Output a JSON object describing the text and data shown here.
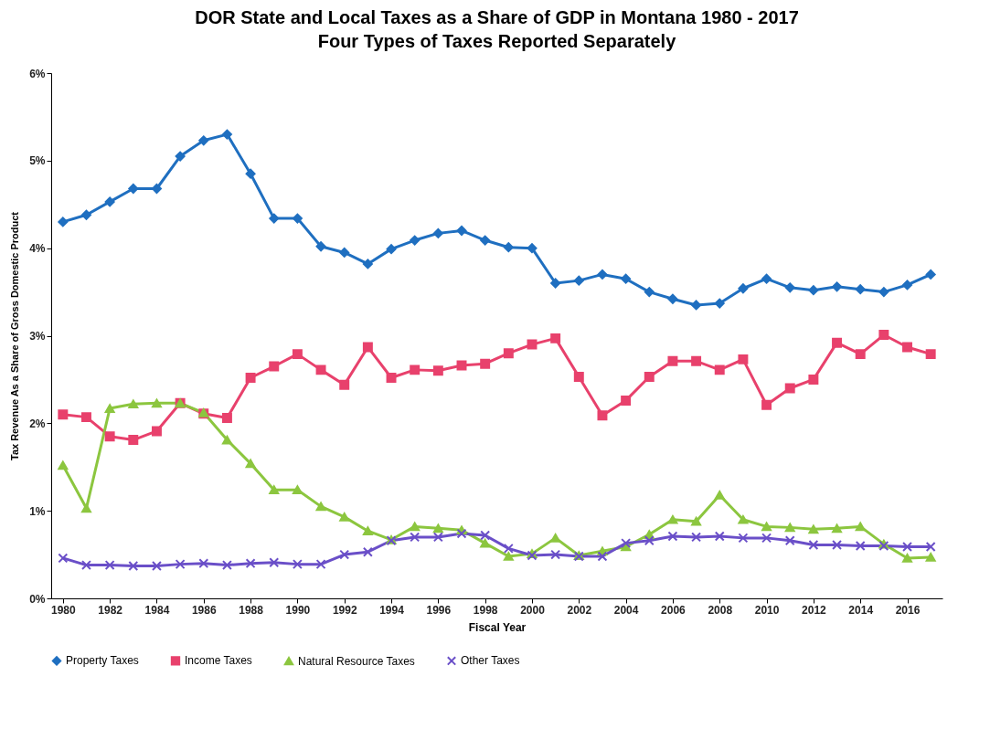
{
  "chart_data": {
    "type": "line",
    "title": "DOR State and Local Taxes as a Share of GDP in Montana 1980 - 2017",
    "subtitle": "Four Types of Taxes Reported Separately",
    "xlabel": "Fiscal Year",
    "ylabel": "Tax Revenue As a Share of Gross Domestic Product",
    "x": [
      1980,
      1981,
      1982,
      1983,
      1984,
      1985,
      1986,
      1987,
      1988,
      1989,
      1990,
      1991,
      1992,
      1993,
      1994,
      1995,
      1996,
      1997,
      1998,
      1999,
      2000,
      2001,
      2002,
      2003,
      2004,
      2005,
      2006,
      2007,
      2008,
      2009,
      2010,
      2011,
      2012,
      2013,
      2014,
      2015,
      2016,
      2017
    ],
    "series": [
      {
        "name": "Property Taxes",
        "color": "#1f6fc0",
        "marker": "diamond",
        "values": [
          4.3,
          4.38,
          4.53,
          4.68,
          4.68,
          5.05,
          5.23,
          5.3,
          4.85,
          4.34,
          4.34,
          4.02,
          3.95,
          3.82,
          3.99,
          4.09,
          4.17,
          4.2,
          4.09,
          4.01,
          4.0,
          3.6,
          3.63,
          3.7,
          3.65,
          3.5,
          3.42,
          3.35,
          3.37,
          3.54,
          3.65,
          3.55,
          3.52,
          3.56,
          3.53,
          3.5,
          3.58,
          3.7
        ]
      },
      {
        "name": "Income Taxes",
        "color": "#e8416c",
        "marker": "square",
        "values": [
          2.1,
          2.07,
          1.85,
          1.81,
          1.91,
          2.23,
          2.11,
          2.06,
          2.52,
          2.65,
          2.79,
          2.61,
          2.44,
          2.87,
          2.52,
          2.61,
          2.6,
          2.66,
          2.68,
          2.8,
          2.9,
          2.97,
          2.53,
          2.09,
          2.26,
          2.53,
          2.71,
          2.71,
          2.61,
          2.73,
          2.21,
          2.4,
          2.5,
          2.92,
          2.79,
          3.01,
          2.87,
          2.79
        ]
      },
      {
        "name": "Natural Resource Taxes",
        "color": "#8cc63f",
        "marker": "triangle",
        "values": [
          1.52,
          1.03,
          2.17,
          2.22,
          2.23,
          2.23,
          2.12,
          1.81,
          1.54,
          1.24,
          1.24,
          1.05,
          0.93,
          0.77,
          0.67,
          0.82,
          0.8,
          0.78,
          0.63,
          0.48,
          0.51,
          0.69,
          0.49,
          0.54,
          0.59,
          0.73,
          0.9,
          0.88,
          1.18,
          0.9,
          0.82,
          0.81,
          0.79,
          0.8,
          0.82,
          0.62,
          0.46,
          0.47
        ]
      },
      {
        "name": "Other Taxes",
        "color": "#6a4fc8",
        "marker": "cross",
        "values": [
          0.46,
          0.38,
          0.38,
          0.37,
          0.37,
          0.39,
          0.4,
          0.38,
          0.4,
          0.41,
          0.39,
          0.39,
          0.5,
          0.53,
          0.66,
          0.7,
          0.7,
          0.74,
          0.72,
          0.57,
          0.49,
          0.5,
          0.48,
          0.48,
          0.63,
          0.66,
          0.71,
          0.7,
          0.71,
          0.69,
          0.69,
          0.66,
          0.61,
          0.61,
          0.6,
          0.6,
          0.59,
          0.59
        ]
      }
    ],
    "xlim": [
      1979.5,
      2017.5
    ],
    "xticks": [
      1980,
      1982,
      1984,
      1986,
      1988,
      1990,
      1992,
      1994,
      1996,
      1998,
      2000,
      2002,
      2004,
      2006,
      2008,
      2010,
      2012,
      2014,
      2016
    ],
    "line_style": "solid",
    "ylim": [
      0,
      6
    ],
    "yticks": [
      {
        "value": 0,
        "label": "0%"
      },
      {
        "value": 1,
        "label": "1%"
      },
      {
        "value": 2,
        "label": "2%"
      },
      {
        "value": 3,
        "label": "3%"
      },
      {
        "value": 4,
        "label": "4%"
      },
      {
        "value": 5,
        "label": "5%"
      },
      {
        "value": 6,
        "label": "6%"
      }
    ],
    "grid": false,
    "legend": "bottom"
  }
}
